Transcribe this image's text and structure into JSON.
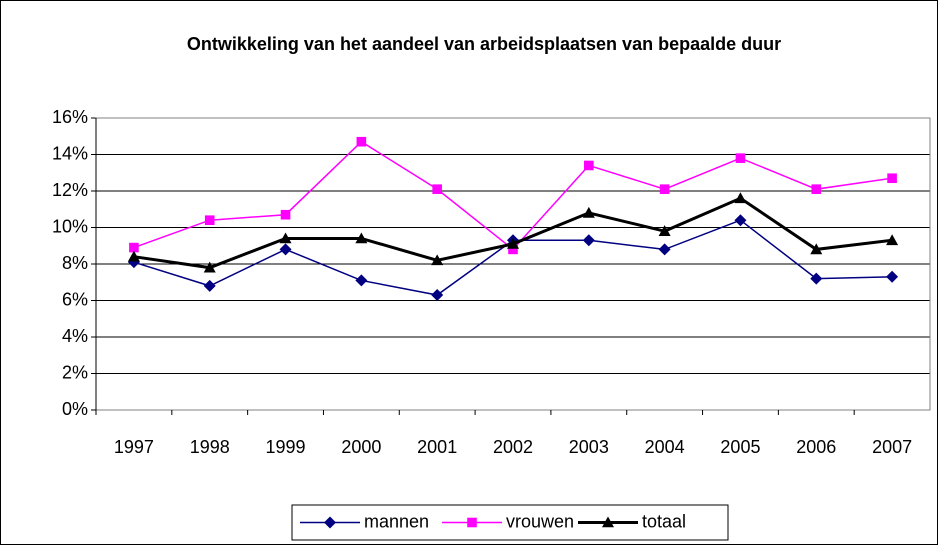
{
  "chart_data": {
    "type": "line",
    "title": "Ontwikkeling van het aandeel van arbeidsplaatsen van bepaalde duur",
    "categories": [
      "1997",
      "1998",
      "1999",
      "2000",
      "2001",
      "2002",
      "2003",
      "2004",
      "2005",
      "2006",
      "2007"
    ],
    "series": [
      {
        "name": "mannen",
        "color": "#000080",
        "marker": "diamond",
        "values": [
          8.1,
          6.8,
          8.8,
          7.1,
          6.3,
          9.3,
          9.3,
          8.8,
          10.4,
          7.2,
          7.3
        ]
      },
      {
        "name": "vrouwen",
        "color": "#ff00ff",
        "marker": "square",
        "values": [
          8.9,
          10.4,
          10.7,
          14.7,
          12.1,
          8.8,
          13.4,
          12.1,
          13.8,
          12.1,
          12.7
        ]
      },
      {
        "name": "totaal",
        "color": "#000000",
        "marker": "triangle",
        "values": [
          8.4,
          7.8,
          9.4,
          9.4,
          8.2,
          9.1,
          10.8,
          9.8,
          11.6,
          8.8,
          9.3
        ]
      }
    ],
    "ylim": [
      0,
      16
    ],
    "yticks": [
      {
        "value": 0,
        "label": "0%"
      },
      {
        "value": 2,
        "label": "2%"
      },
      {
        "value": 4,
        "label": "4%"
      },
      {
        "value": 6,
        "label": "6%"
      },
      {
        "value": 8,
        "label": "8%"
      },
      {
        "value": 10,
        "label": "10%"
      },
      {
        "value": 12,
        "label": "12%"
      },
      {
        "value": 14,
        "label": "14%"
      },
      {
        "value": 16,
        "label": "16%"
      }
    ],
    "grid": true,
    "legend": "bottom"
  }
}
